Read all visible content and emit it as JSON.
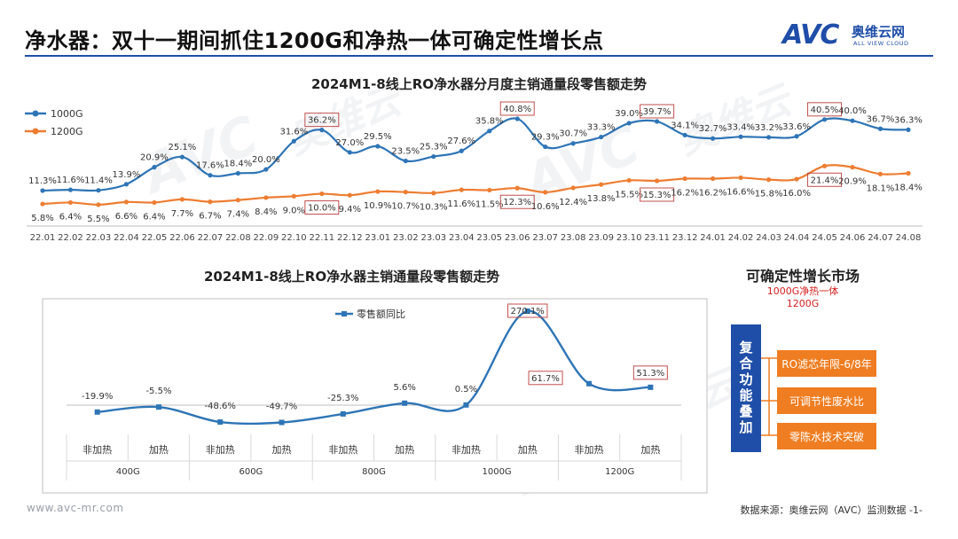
{
  "page": {
    "title": "净水器：双十一期间抓住1200G和净热一体可确定性增长点",
    "footer_left": "www.avc-mr.com",
    "footer_right": "数据来源：奥维云网（AVC）监测数据 -1-"
  },
  "logo": {
    "mark": "AVC",
    "name_cn": "奥维云网",
    "name_en": "ALL VIEW CLOUD",
    "color": "#1f4ea8"
  },
  "watermark": {
    "cn": "奥维云",
    "avc": "AVC",
    "en": "ALL VIEW CLOUD"
  },
  "colors": {
    "blue": "#2e75b6",
    "orange": "#ed7d31",
    "dark_blue": "#1f4ea8",
    "highlight_box": "#c0504d"
  },
  "chart_data": [
    {
      "type": "line",
      "title": "2024M1-8线上RO净水器分月度主销通量段零售额走势",
      "x": [
        "22.01",
        "22.02",
        "22.03",
        "22.04",
        "22.05",
        "22.06",
        "22.07",
        "22.08",
        "22.09",
        "22.10",
        "22.11",
        "22.12",
        "23.01",
        "23.02",
        "23.03",
        "23.04",
        "23.05",
        "23.06",
        "23.07",
        "23.08",
        "23.09",
        "23.10",
        "23.11",
        "23.12",
        "24.01",
        "24.02",
        "24.03",
        "24.04",
        "24.05",
        "24.06",
        "24.07",
        "24.08"
      ],
      "series": [
        {
          "name": "1000G",
          "color": "#2e75b6",
          "values": [
            11.3,
            11.6,
            11.4,
            13.9,
            20.9,
            25.1,
            17.6,
            18.4,
            20.0,
            31.6,
            36.2,
            27.0,
            29.5,
            23.5,
            25.3,
            27.6,
            35.8,
            40.8,
            29.3,
            30.7,
            33.3,
            39.0,
            39.7,
            34.1,
            32.7,
            33.4,
            33.2,
            33.6,
            40.5,
            40.0,
            36.7,
            36.3
          ],
          "labels": [
            "11.3%",
            "11.6%",
            "11.4%",
            "13.9%",
            "20.9%",
            "25.1%",
            "17.6%",
            "18.4%",
            "20.0%",
            "31.6%",
            "36.2%",
            "27.0%",
            "29.5%",
            "23.5%",
            "25.3%",
            "27.6%",
            "35.8%",
            "40.8%",
            "29.3%",
            "30.7%",
            "33.3%",
            "39.0%",
            "39.7%",
            "34.1%",
            "32.7%",
            "33.4%",
            "33.2%",
            "33.6%",
            "40.5%",
            "40.0%",
            "36.7%",
            "36.3%"
          ],
          "highlighted_index": [
            10,
            17,
            22,
            28
          ]
        },
        {
          "name": "1200G",
          "color": "#ed7d31",
          "values": [
            5.8,
            6.4,
            5.5,
            6.6,
            6.4,
            7.7,
            6.7,
            7.4,
            8.4,
            9.0,
            10.0,
            9.4,
            10.9,
            10.7,
            10.3,
            11.6,
            11.5,
            12.3,
            10.6,
            12.4,
            13.8,
            15.5,
            15.3,
            16.2,
            16.2,
            16.6,
            15.8,
            16.0,
            21.4,
            20.9,
            18.1,
            18.4
          ],
          "labels": [
            "5.8%",
            "6.4%",
            "5.5%",
            "6.6%",
            "6.4%",
            "7.7%",
            "6.7%",
            "7.4%",
            "8.4%",
            "9.0%",
            "10.0%",
            "9.4%",
            "10.9%",
            "10.7%",
            "10.3%",
            "11.6%",
            "11.5%",
            "12.3%",
            "10.6%",
            "12.4%",
            "13.8%",
            "15.5%",
            "15.3%",
            "16.2%",
            "16.2%",
            "16.6%",
            "15.8%",
            "16.0%",
            "21.4%",
            "20.9%",
            "18.1%",
            "18.4%"
          ],
          "highlighted_index": [
            10,
            17,
            22,
            28
          ]
        }
      ],
      "ylim": [
        0,
        45
      ],
      "legend": "left"
    },
    {
      "type": "line",
      "title": "2024M1-8线上RO净水器主销通量段零售额走势",
      "categories": [
        "非加热",
        "加热",
        "非加热",
        "加热",
        "非加热",
        "加热",
        "非加热",
        "加热",
        "非加热",
        "加热"
      ],
      "groups": [
        "400G",
        "600G",
        "800G",
        "1000G",
        "1200G"
      ],
      "series": [
        {
          "name": "零售额同比",
          "color": "#2e75b6",
          "values": [
            -19.9,
            -5.5,
            -48.6,
            -49.7,
            -25.3,
            5.6,
            0.5,
            270.1,
            61.7,
            51.3
          ],
          "labels": [
            "-19.9%",
            "-5.5%",
            "-48.6%",
            "-49.7%",
            "-25.3%",
            "5.6%",
            "0.5%",
            "270.1%",
            "61.7%",
            "51.3%"
          ],
          "highlighted_index": [
            7,
            8,
            9
          ]
        }
      ],
      "ylim": [
        -60,
        290
      ],
      "legend": "top"
    }
  ],
  "panel": {
    "title": "可确定性增长市场",
    "subtitle_1": "1000G净热一体",
    "subtitle_2": "1200G",
    "bar_label": "复合功能叠加",
    "features": [
      "RO滤芯年限-6/8年",
      "可调节性废水比",
      "零陈水技术突破"
    ]
  }
}
